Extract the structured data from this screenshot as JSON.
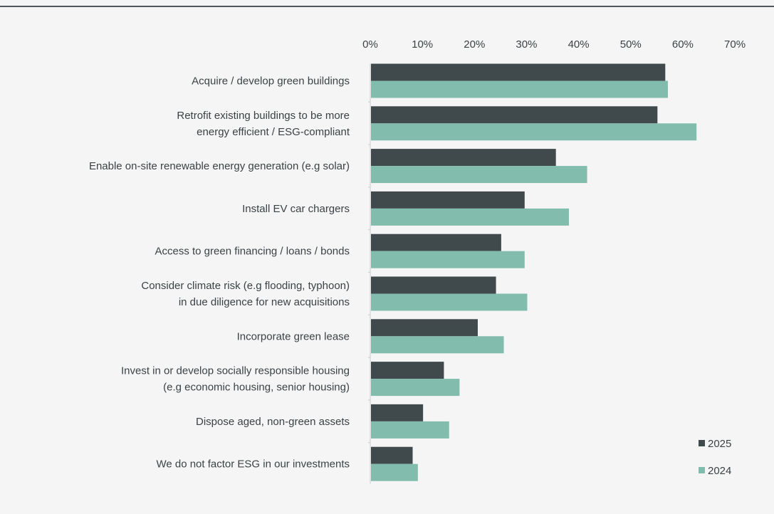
{
  "chart_data": {
    "type": "bar",
    "orientation": "horizontal",
    "categories": [
      [
        "Acquire / develop green buildings"
      ],
      [
        "Retrofit existing buildings to be more",
        "energy efficient / ESG-compliant"
      ],
      [
        "Enable on-site renewable energy generation  (e.g solar)"
      ],
      [
        "Install EV car chargers"
      ],
      [
        "Access to green financing / loans / bonds"
      ],
      [
        "Consider climate risk (e.g flooding, typhoon)",
        "in due diligence for new acquisitions"
      ],
      [
        "Incorporate green lease"
      ],
      [
        "Invest in or develop socially responsible housing",
        "(e.g economic housing, senior housing)"
      ],
      [
        "Dispose aged, non-green assets"
      ],
      [
        "We do not factor ESG in our investments"
      ]
    ],
    "series": [
      {
        "name": "2025",
        "color": "#40494c",
        "values": [
          56.5,
          55,
          35.5,
          29.5,
          25,
          24,
          20.5,
          14,
          10,
          8
        ]
      },
      {
        "name": "2024",
        "color": "#82bcad",
        "values": [
          57,
          62.5,
          41.5,
          38,
          29.5,
          30,
          25.5,
          17,
          15,
          9
        ]
      }
    ],
    "xlim": [
      0,
      70
    ],
    "x_ticks": [
      "0%",
      "10%",
      "20%",
      "30%",
      "40%",
      "50%",
      "60%",
      "70%"
    ],
    "axis_position": "top",
    "grid": false,
    "legend_position": "bottom-right"
  }
}
